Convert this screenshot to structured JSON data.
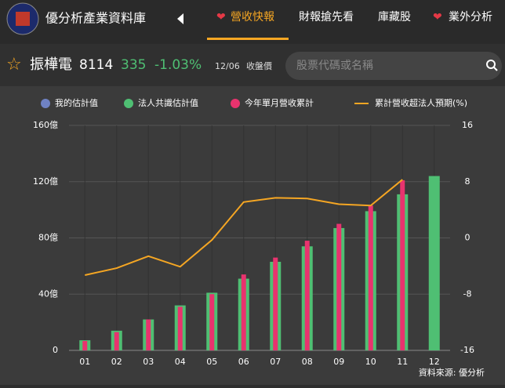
{
  "header": {
    "title": "優分析產業資料庫",
    "nav": [
      "營收快報",
      "財報搶先看",
      "庫藏股",
      "業外分析"
    ]
  },
  "stock": {
    "name": "振樺電",
    "code": "8114",
    "price": "335",
    "change": "-1.03%",
    "date": "12/06",
    "date_label": "收盤價",
    "search_placeholder": "股票代碼或名稱"
  },
  "source": "資料來源: 優分析",
  "chart_data": {
    "type": "bar",
    "categories": [
      "01",
      "02",
      "03",
      "04",
      "05",
      "06",
      "07",
      "08",
      "09",
      "10",
      "11",
      "12"
    ],
    "series": [
      {
        "name": "我的估計值",
        "color": "#6f82c4",
        "values": [
          null,
          null,
          null,
          null,
          null,
          null,
          null,
          null,
          null,
          null,
          null,
          null
        ]
      },
      {
        "name": "法人共識估計值",
        "color": "#4fbf73",
        "values": [
          7.2,
          14,
          22,
          32,
          41,
          51,
          63,
          74,
          87,
          99,
          111,
          124
        ]
      },
      {
        "name": "今年單月營收累計",
        "color": "#e8336e",
        "values": [
          6.7,
          13,
          22,
          31,
          40,
          54,
          66,
          78,
          90,
          103,
          121,
          null
        ]
      },
      {
        "name": "累計營收超法人預期(%)",
        "color": "#f5a623",
        "type": "line",
        "axis": "y2",
        "values": [
          -5.3,
          -4.3,
          -2.6,
          -4.1,
          -0.3,
          5.1,
          5.7,
          5.6,
          4.8,
          4.6,
          8.3,
          null
        ]
      }
    ],
    "ylim": [
      0,
      160
    ],
    "yticks": [
      0,
      {
        "value": 40,
        "label": "40億"
      },
      {
        "value": 80,
        "label": "80億"
      },
      {
        "value": 120,
        "label": "120億"
      },
      {
        "value": 160,
        "label": "160億"
      }
    ],
    "y2lim": [
      -16,
      16
    ],
    "y2ticks": [
      -16,
      -8,
      0,
      8,
      16
    ],
    "grid": true,
    "legend": "top"
  }
}
